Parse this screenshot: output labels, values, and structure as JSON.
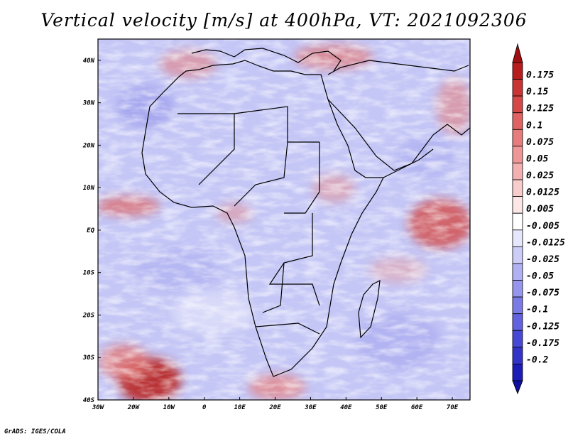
{
  "title": "Vertical velocity [m/s] at 400hPa, VT: 2021092306",
  "footer": "GrADS: IGES/COLA",
  "lat_labels": [
    "40N",
    "30N",
    "20N",
    "10N",
    "EQ",
    "10S",
    "20S",
    "30S",
    "40S"
  ],
  "lon_labels": [
    "30W",
    "20W",
    "10W",
    "0",
    "10E",
    "20E",
    "30E",
    "40E",
    "50E",
    "60E",
    "70E"
  ],
  "colorbar": {
    "labels": [
      "0.175",
      "0.15",
      "0.125",
      "0.1",
      "0.075",
      "0.05",
      "0.025",
      "0.0125",
      "0.005",
      "-0.005",
      "-0.0125",
      "-0.025",
      "-0.05",
      "-0.075",
      "-0.1",
      "-0.125",
      "-0.175",
      "-0.2"
    ],
    "colors": [
      "#b81c1c",
      "#c93333",
      "#d64848",
      "#e06262",
      "#e87b7b",
      "#ef9696",
      "#f4b0b0",
      "#f9cccc",
      "#fde6e6",
      "#ffffff",
      "#e6e6fd",
      "#ccccf9",
      "#b0b0f4",
      "#9696ef",
      "#7b7be8",
      "#6262e0",
      "#4848d6",
      "#3333c9",
      "#1c1cb8"
    ],
    "top_color": "#a01010",
    "bottom_color": "#1010a0"
  },
  "map": {
    "extent": {
      "lon_min": -30,
      "lon_max": 75,
      "lat_min": -40,
      "lat_max": 45
    },
    "colors": {
      "base": "#c4c6f6",
      "frame": "#000000",
      "coast": "#000000"
    }
  }
}
